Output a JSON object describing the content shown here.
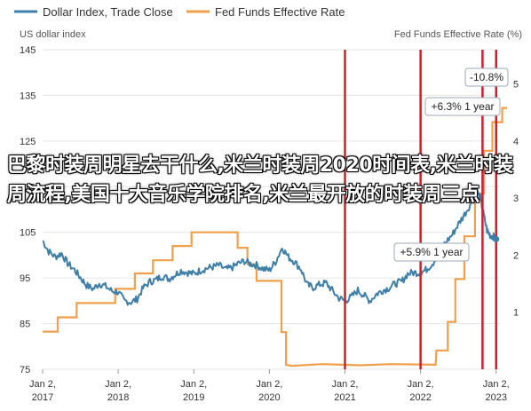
{
  "colors": {
    "dollar": "#3d7fa8",
    "fed": "#f0a04b",
    "event": "#d11f2a",
    "grid": "#e6e6e6",
    "text": "#333333"
  },
  "legend": [
    {
      "label": "Dollar Index, Trade Close",
      "color": "#3d7fa8"
    },
    {
      "label": "Fed Funds Effective Rate",
      "color": "#f0a04b"
    }
  ],
  "overlay_text": "巴黎时装周明星去干什么,米兰时装周2020时间表,米兰时装周流程,美国十大音乐学院排名,米兰最开放的时装周三点",
  "chart_data": {
    "type": "line",
    "left_axis_title": "US dollar index",
    "right_axis_title": "Fed Funds Effective Rate (%)",
    "left_ticks": [
      "145",
      "135",
      "125",
      "115",
      "105",
      "95",
      "85",
      "75"
    ],
    "right_ticks": [
      "5",
      "4",
      "3",
      "2",
      "1"
    ],
    "ylim_left": [
      75,
      145
    ],
    "ylim_right": [
      0,
      5.6
    ],
    "xlim": [
      2017.0,
      2023.05
    ],
    "x_ticks": [
      {
        "line1": "Jan 2,",
        "line2": "2017",
        "x": 2017.0
      },
      {
        "line1": "Jan 2,",
        "line2": "2018",
        "x": 2018.0
      },
      {
        "line1": "Jan 2,",
        "line2": "2019",
        "x": 2019.0
      },
      {
        "line1": "Jan 2,",
        "line2": "2020",
        "x": 2020.0
      },
      {
        "line1": "Jan 2,",
        "line2": "2021",
        "x": 2021.0
      },
      {
        "line1": "Jan 2,",
        "line2": "2022",
        "x": 2022.0
      },
      {
        "line1": "Jan 2,",
        "line2": "2023",
        "x": 2023.0
      }
    ],
    "event_lines": [
      2021.0,
      2022.0,
      2022.82,
      2023.0
    ],
    "series": [
      {
        "name": "Dollar Index, Trade Close",
        "axis": "left",
        "points": [
          [
            2017.0,
            103.2
          ],
          [
            2017.08,
            100.8
          ],
          [
            2017.17,
            99.6
          ],
          [
            2017.25,
            100.4
          ],
          [
            2017.33,
            98.2
          ],
          [
            2017.42,
            96.8
          ],
          [
            2017.5,
            95.1
          ],
          [
            2017.58,
            93.4
          ],
          [
            2017.67,
            92.6
          ],
          [
            2017.75,
            93.8
          ],
          [
            2017.83,
            93.2
          ],
          [
            2017.92,
            92.1
          ],
          [
            2018.0,
            91.9
          ],
          [
            2018.08,
            90.0
          ],
          [
            2018.17,
            89.7
          ],
          [
            2018.25,
            90.4
          ],
          [
            2018.33,
            92.8
          ],
          [
            2018.42,
            94.2
          ],
          [
            2018.5,
            94.6
          ],
          [
            2018.58,
            95.4
          ],
          [
            2018.67,
            94.8
          ],
          [
            2018.75,
            95.7
          ],
          [
            2018.83,
            96.6
          ],
          [
            2018.92,
            96.2
          ],
          [
            2019.0,
            95.9
          ],
          [
            2019.08,
            96.6
          ],
          [
            2019.17,
            97.1
          ],
          [
            2019.25,
            97.4
          ],
          [
            2019.33,
            97.8
          ],
          [
            2019.42,
            96.9
          ],
          [
            2019.5,
            97.2
          ],
          [
            2019.58,
            98.1
          ],
          [
            2019.67,
            98.7
          ],
          [
            2019.75,
            98.1
          ],
          [
            2019.83,
            97.8
          ],
          [
            2019.92,
            97.0
          ],
          [
            2020.0,
            96.7
          ],
          [
            2020.08,
            98.5
          ],
          [
            2020.17,
            101.7
          ],
          [
            2020.25,
            99.6
          ],
          [
            2020.33,
            98.6
          ],
          [
            2020.42,
            96.9
          ],
          [
            2020.5,
            93.5
          ],
          [
            2020.58,
            92.9
          ],
          [
            2020.67,
            93.6
          ],
          [
            2020.75,
            93.9
          ],
          [
            2020.83,
            92.3
          ],
          [
            2020.92,
            90.6
          ],
          [
            2021.0,
            90.0
          ],
          [
            2021.08,
            90.8
          ],
          [
            2021.17,
            92.3
          ],
          [
            2021.25,
            91.2
          ],
          [
            2021.33,
            90.0
          ],
          [
            2021.42,
            91.5
          ],
          [
            2021.5,
            92.3
          ],
          [
            2021.58,
            92.8
          ],
          [
            2021.67,
            93.8
          ],
          [
            2021.75,
            94.2
          ],
          [
            2021.83,
            95.9
          ],
          [
            2021.92,
            96.2
          ],
          [
            2022.0,
            96.1
          ],
          [
            2022.08,
            96.9
          ],
          [
            2022.17,
            98.4
          ],
          [
            2022.25,
            101.4
          ],
          [
            2022.33,
            102.7
          ],
          [
            2022.42,
            104.5
          ],
          [
            2022.5,
            106.8
          ],
          [
            2022.58,
            108.9
          ],
          [
            2022.67,
            111.4
          ],
          [
            2022.75,
            113.8
          ],
          [
            2022.79,
            112.6
          ],
          [
            2022.83,
            109.2
          ],
          [
            2022.88,
            105.4
          ],
          [
            2022.92,
            104.4
          ],
          [
            2022.96,
            104.1
          ],
          [
            2023.0,
            103.5
          ]
        ]
      },
      {
        "name": "Fed Funds Effective Rate",
        "axis": "right",
        "points": [
          [
            2017.0,
            0.66
          ],
          [
            2017.2,
            0.66
          ],
          [
            2017.2,
            0.91
          ],
          [
            2017.45,
            0.91
          ],
          [
            2017.45,
            1.16
          ],
          [
            2017.96,
            1.16
          ],
          [
            2017.96,
            1.41
          ],
          [
            2018.22,
            1.41
          ],
          [
            2018.22,
            1.68
          ],
          [
            2018.46,
            1.68
          ],
          [
            2018.46,
            1.91
          ],
          [
            2018.72,
            1.91
          ],
          [
            2018.72,
            2.16
          ],
          [
            2018.97,
            2.16
          ],
          [
            2018.97,
            2.4
          ],
          [
            2019.58,
            2.4
          ],
          [
            2019.58,
            2.13
          ],
          [
            2019.71,
            2.13
          ],
          [
            2019.71,
            1.84
          ],
          [
            2019.83,
            1.84
          ],
          [
            2019.83,
            1.55
          ],
          [
            2020.16,
            1.55
          ],
          [
            2020.16,
            0.65
          ],
          [
            2020.22,
            0.65
          ],
          [
            2020.22,
            0.08
          ],
          [
            2020.3,
            0.06
          ],
          [
            2020.7,
            0.09
          ],
          [
            2021.2,
            0.07
          ],
          [
            2021.6,
            0.09
          ],
          [
            2022.2,
            0.08
          ],
          [
            2022.21,
            0.33
          ],
          [
            2022.36,
            0.33
          ],
          [
            2022.36,
            0.83
          ],
          [
            2022.46,
            0.83
          ],
          [
            2022.46,
            1.58
          ],
          [
            2022.58,
            1.58
          ],
          [
            2022.58,
            2.33
          ],
          [
            2022.72,
            2.33
          ],
          [
            2022.72,
            3.08
          ],
          [
            2022.84,
            3.08
          ],
          [
            2022.84,
            3.83
          ],
          [
            2022.95,
            3.83
          ],
          [
            2022.95,
            4.33
          ],
          [
            2023.08,
            4.33
          ],
          [
            2023.08,
            4.58
          ],
          [
            2023.2,
            4.58
          ],
          [
            2023.2,
            4.83
          ],
          [
            2023.4,
            4.83
          ],
          [
            2023.4,
            5.08
          ],
          [
            2023.5,
            5.08
          ]
        ]
      }
    ],
    "callouts": [
      {
        "text": "-10.8%",
        "series": "Dollar Index, Trade Close",
        "x": 2022.75,
        "y": 113.8
      },
      {
        "text": "+6.3% 1 year",
        "series": "Dollar Index, Trade Close",
        "x": 2022.75,
        "y": 113.8
      },
      {
        "text": "+5.9% 1 year",
        "series": "Dollar Index, Trade Close",
        "x": 2022.6,
        "y": 108.0
      }
    ],
    "grid": true,
    "legend_position": "top-left"
  }
}
